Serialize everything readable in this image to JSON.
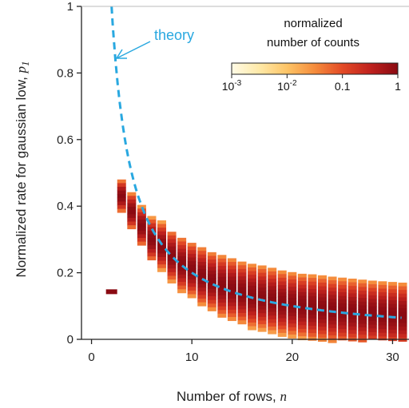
{
  "chart_data": {
    "type": "heatmap",
    "xlabel": "Number of rows, ",
    "xlabel_symbol": "n",
    "ylabel": "Normalized rate for gaussian low, ",
    "ylabel_symbol": "p",
    "ylabel_subscript": "1",
    "xlim": [
      -1,
      31
    ],
    "ylim": [
      0,
      1
    ],
    "x_ticks": [
      0,
      10,
      20,
      30
    ],
    "x_tick_labels": [
      "0",
      "10",
      "20",
      "30"
    ],
    "y_ticks": [
      0,
      0.2,
      0.4,
      0.6,
      0.8,
      1
    ],
    "y_tick_labels": [
      "0",
      "0.2",
      "0.4",
      "0.6",
      "0.8",
      "1"
    ],
    "grid": false,
    "colorbar": {
      "title_lines": [
        "normalized",
        "number of counts"
      ],
      "scale": "log",
      "range": [
        0.001,
        1
      ],
      "tick_labels": [
        {
          "base": "10",
          "exp": "-3",
          "value": 0.001
        },
        {
          "base": "10",
          "exp": "-2",
          "value": 0.01
        },
        {
          "base": "",
          "exp": "",
          "text": "0.1",
          "value": 0.1
        },
        {
          "base": "",
          "exp": "",
          "text": "1",
          "value": 1
        }
      ],
      "colors": [
        "#fffbe6",
        "#fee9a8",
        "#fdc466",
        "#f58c3c",
        "#e34a26",
        "#c0221e",
        "#8a0a12"
      ],
      "placement": "top-right"
    },
    "theory_curve": {
      "label": "theory",
      "color": "#29a8e0",
      "style": "dashed",
      "formula": "p1 = 2/n",
      "x_range": [
        2,
        31
      ]
    },
    "columns": [
      {
        "n": 2,
        "center": 0.143,
        "spread": 0.004
      },
      {
        "n": 3,
        "center": 0.43,
        "spread": 0.018
      },
      {
        "n": 4,
        "center": 0.385,
        "spread": 0.02
      },
      {
        "n": 5,
        "center": 0.34,
        "spread": 0.022
      },
      {
        "n": 6,
        "center": 0.3,
        "spread": 0.024
      },
      {
        "n": 7,
        "center": 0.28,
        "spread": 0.026
      },
      {
        "n": 8,
        "center": 0.25,
        "spread": 0.028
      },
      {
        "n": 9,
        "center": 0.225,
        "spread": 0.03
      },
      {
        "n": 10,
        "center": 0.21,
        "spread": 0.03
      },
      {
        "n": 11,
        "center": 0.19,
        "spread": 0.032
      },
      {
        "n": 12,
        "center": 0.175,
        "spread": 0.032
      },
      {
        "n": 13,
        "center": 0.16,
        "spread": 0.034
      },
      {
        "n": 14,
        "center": 0.15,
        "spread": 0.034
      },
      {
        "n": 15,
        "center": 0.14,
        "spread": 0.034
      },
      {
        "n": 16,
        "center": 0.13,
        "spread": 0.035
      },
      {
        "n": 17,
        "center": 0.125,
        "spread": 0.035
      },
      {
        "n": 18,
        "center": 0.118,
        "spread": 0.035
      },
      {
        "n": 19,
        "center": 0.11,
        "spread": 0.035
      },
      {
        "n": 20,
        "center": 0.105,
        "spread": 0.035
      },
      {
        "n": 21,
        "center": 0.1,
        "spread": 0.035
      },
      {
        "n": 22,
        "center": 0.095,
        "spread": 0.036
      },
      {
        "n": 23,
        "center": 0.092,
        "spread": 0.036
      },
      {
        "n": 24,
        "center": 0.088,
        "spread": 0.036
      },
      {
        "n": 25,
        "center": 0.085,
        "spread": 0.036
      },
      {
        "n": 26,
        "center": 0.082,
        "spread": 0.036
      },
      {
        "n": 27,
        "center": 0.079,
        "spread": 0.036
      },
      {
        "n": 28,
        "center": 0.076,
        "spread": 0.036
      },
      {
        "n": 29,
        "center": 0.074,
        "spread": 0.036
      },
      {
        "n": 30,
        "center": 0.072,
        "spread": 0.036
      },
      {
        "n": 31,
        "center": 0.07,
        "spread": 0.036
      }
    ]
  }
}
